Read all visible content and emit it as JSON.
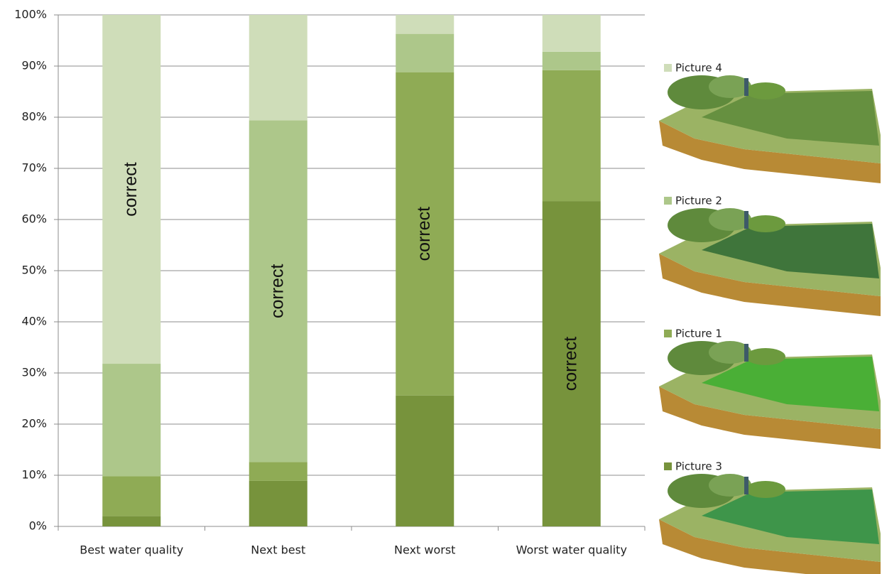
{
  "chart_data": {
    "type": "stacked_bar",
    "categories": [
      "Best water quality",
      "Next best",
      "Next worst",
      "Worst water quality"
    ],
    "series": [
      {
        "name": "Picture 3",
        "color": "#77933c",
        "values": [
          2,
          8.9,
          25.6,
          63.6
        ],
        "annotations": [
          null,
          null,
          null,
          "correct"
        ]
      },
      {
        "name": "Picture 1",
        "color": "#8fab55",
        "values": [
          7.8,
          3.7,
          63.2,
          25.6
        ],
        "annotations": [
          null,
          null,
          "correct",
          null
        ]
      },
      {
        "name": "Picture 2",
        "color": "#adc78a",
        "values": [
          22,
          66.8,
          7.5,
          3.6
        ],
        "annotations": [
          null,
          "correct",
          null,
          null
        ]
      },
      {
        "name": "Picture 4",
        "color": "#cfddb9",
        "values": [
          68.2,
          20.6,
          3.7,
          7.2
        ],
        "annotations": [
          "correct",
          null,
          null,
          null
        ]
      }
    ],
    "ylim": [
      0,
      100
    ],
    "yticks": [
      {
        "value": 0,
        "label": "0%"
      },
      {
        "value": 10,
        "label": "10%"
      },
      {
        "value": 20,
        "label": "20%"
      },
      {
        "value": 30,
        "label": "30%"
      },
      {
        "value": 40,
        "label": "40%"
      },
      {
        "value": 50,
        "label": "50%"
      },
      {
        "value": 60,
        "label": "60%"
      },
      {
        "value": 70,
        "label": "70%"
      },
      {
        "value": 80,
        "label": "80%"
      },
      {
        "value": 90,
        "label": "90%"
      },
      {
        "value": 100,
        "label": "100%"
      }
    ],
    "grid": true,
    "legend": "right"
  }
}
